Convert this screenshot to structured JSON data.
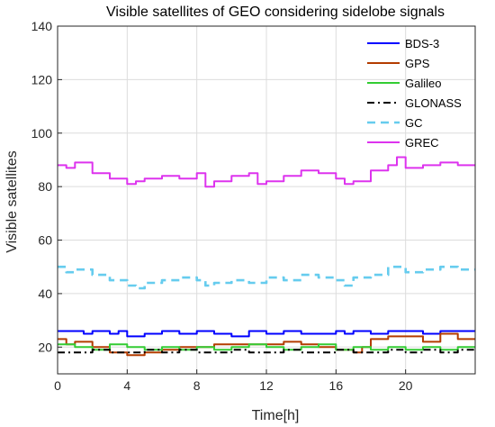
{
  "chart_data": {
    "type": "line",
    "title": "Visible satellites of GEO considering sidelobe signals",
    "xlabel": "Time[h]",
    "ylabel": "Visible satellites",
    "xlim": [
      0,
      24
    ],
    "ylim": [
      10,
      140
    ],
    "xticks": [
      0,
      4,
      8,
      12,
      16,
      20
    ],
    "yticks": [
      20,
      40,
      60,
      80,
      100,
      120,
      140
    ],
    "grid": true,
    "legend_position": "top-right",
    "series": [
      {
        "name": "BDS-3",
        "color": "#0000ff",
        "style": "solid",
        "x": [
          0,
          1,
          1.5,
          2,
          3,
          3.5,
          4,
          5,
          6,
          7,
          8,
          9,
          10,
          11,
          12,
          13,
          14,
          15,
          16,
          16.5,
          17,
          18,
          19,
          20,
          21,
          22,
          23,
          24
        ],
        "y": [
          26,
          26,
          25,
          26,
          25,
          26,
          24,
          25,
          26,
          25,
          26,
          25,
          24,
          26,
          25,
          26,
          25,
          25,
          26,
          25,
          26,
          25,
          26,
          26,
          25,
          26,
          26,
          26
        ]
      },
      {
        "name": "GPS",
        "color": "#b33c00",
        "style": "solid",
        "x": [
          0,
          0.5,
          1,
          2,
          3,
          4,
          5,
          6,
          7,
          8,
          9,
          10,
          11,
          12,
          13,
          14,
          15,
          16,
          17,
          17.5,
          18,
          19,
          20,
          21,
          22,
          23,
          24
        ],
        "y": [
          23,
          21,
          22,
          20,
          18,
          17,
          18,
          19,
          20,
          20,
          21,
          21,
          21,
          21,
          22,
          21,
          20,
          19,
          18,
          20,
          23,
          24,
          24,
          22,
          25,
          23,
          23
        ]
      },
      {
        "name": "Galileo",
        "color": "#33cc33",
        "style": "solid",
        "x": [
          0,
          1,
          2,
          3,
          4,
          5,
          6,
          7,
          8,
          9,
          10,
          11,
          12,
          13,
          14,
          15,
          16,
          17,
          18,
          19,
          20,
          21,
          22,
          23,
          24
        ],
        "y": [
          21,
          20,
          19,
          21,
          20,
          19,
          20,
          19,
          20,
          19,
          20,
          21,
          20,
          19,
          20,
          21,
          19,
          20,
          19,
          20,
          19,
          20,
          19,
          20,
          20
        ]
      },
      {
        "name": "GLONASS",
        "color": "#000000",
        "style": "dashdot",
        "x": [
          0,
          1,
          2,
          3,
          4,
          5,
          6,
          7,
          8,
          9,
          10,
          11,
          12,
          13,
          14,
          15,
          16,
          17,
          18,
          19,
          20,
          21,
          22,
          23,
          24
        ],
        "y": [
          18,
          18,
          19,
          18,
          18,
          19,
          18,
          19,
          18,
          18,
          19,
          18,
          18,
          19,
          18,
          18,
          19,
          18,
          18,
          19,
          18,
          19,
          18,
          19,
          19
        ]
      },
      {
        "name": "GC",
        "color": "#66ccee",
        "style": "dashed",
        "x": [
          0,
          0.5,
          1,
          2,
          3,
          4,
          4.5,
          5,
          6,
          7,
          8,
          8.5,
          9,
          10,
          11,
          12,
          13,
          14,
          15,
          16,
          16.5,
          17,
          18,
          19,
          20,
          21,
          22,
          23,
          24
        ],
        "y": [
          50,
          48,
          49,
          47,
          45,
          43,
          42,
          44,
          45,
          46,
          45,
          43,
          44,
          45,
          44,
          46,
          45,
          47,
          46,
          45,
          43,
          46,
          47,
          50,
          48,
          49,
          50,
          49,
          49
        ]
      },
      {
        "name": "GREC",
        "color": "#dd33ee",
        "style": "solid",
        "x": [
          0,
          0.5,
          1,
          2,
          3,
          4,
          4.5,
          5,
          6,
          7,
          8,
          8.5,
          9,
          10,
          11,
          11.5,
          12,
          13,
          14,
          15,
          16,
          16.5,
          17,
          18,
          19,
          19.5,
          20,
          21,
          22,
          23,
          24
        ],
        "y": [
          88,
          87,
          89,
          85,
          83,
          81,
          82,
          83,
          84,
          83,
          85,
          80,
          82,
          84,
          85,
          81,
          82,
          84,
          86,
          85,
          83,
          81,
          82,
          86,
          88,
          91,
          87,
          88,
          89,
          88,
          88
        ]
      }
    ]
  }
}
